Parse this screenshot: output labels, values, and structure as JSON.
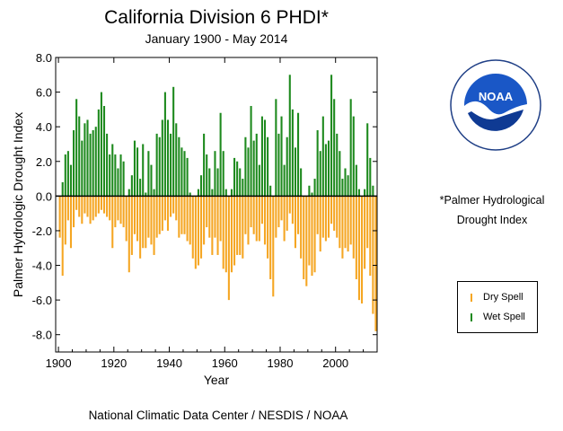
{
  "chart_data": {
    "type": "bar",
    "title": "California Division 6 PHDI*",
    "subtitle": "January 1900 - May 2014",
    "xlabel": "Year",
    "ylabel": "Palmer Hydrologic Drought Index",
    "xlim": [
      1899,
      2015
    ],
    "ylim": [
      -9.0,
      8.0
    ],
    "yticks": [
      "8.0",
      "6.0",
      "4.0",
      "2.0",
      "0.0",
      "-2.0",
      "-4.0",
      "-6.0",
      "-8.0"
    ],
    "ytick_values": [
      8,
      6,
      4,
      2,
      0,
      -2,
      -4,
      -6,
      -8
    ],
    "xticks": [
      "1900",
      "1920",
      "1940",
      "1960",
      "1980",
      "2000"
    ],
    "xtick_values": [
      1900,
      1920,
      1940,
      1960,
      1980,
      2000
    ],
    "grid": false,
    "series": [
      {
        "name": "Dry Spell",
        "color": "#f5a623"
      },
      {
        "name": "Wet Spell",
        "color": "#1e8a1e"
      }
    ],
    "x": [
      1900,
      1901,
      1902,
      1903,
      1904,
      1905,
      1906,
      1907,
      1908,
      1909,
      1910,
      1911,
      1912,
      1913,
      1914,
      1915,
      1916,
      1917,
      1918,
      1919,
      1920,
      1921,
      1922,
      1923,
      1924,
      1925,
      1926,
      1927,
      1928,
      1929,
      1930,
      1931,
      1932,
      1933,
      1934,
      1935,
      1936,
      1937,
      1938,
      1939,
      1940,
      1941,
      1942,
      1943,
      1944,
      1945,
      1946,
      1947,
      1948,
      1949,
      1950,
      1951,
      1952,
      1953,
      1954,
      1955,
      1956,
      1957,
      1958,
      1959,
      1960,
      1961,
      1962,
      1963,
      1964,
      1965,
      1966,
      1967,
      1968,
      1969,
      1970,
      1971,
      1972,
      1973,
      1974,
      1975,
      1976,
      1977,
      1978,
      1979,
      1980,
      1981,
      1982,
      1983,
      1984,
      1985,
      1986,
      1987,
      1988,
      1989,
      1990,
      1991,
      1992,
      1993,
      1994,
      1995,
      1996,
      1997,
      1998,
      1999,
      2000,
      2001,
      2002,
      2003,
      2004,
      2005,
      2006,
      2007,
      2008,
      2009,
      2010,
      2011,
      2012,
      2013,
      2014
    ],
    "y_max": [
      0,
      0.8,
      2.4,
      2.6,
      1.8,
      3.8,
      5.6,
      4.6,
      3.2,
      4.2,
      4.4,
      3.6,
      3.8,
      4.0,
      5.0,
      6.0,
      5.2,
      3.6,
      2.4,
      3.0,
      2.4,
      1.6,
      2.4,
      2.0,
      0,
      0.4,
      1.2,
      3.2,
      2.8,
      1.0,
      3.0,
      0.2,
      2.6,
      1.8,
      0.4,
      3.6,
      3.4,
      4.4,
      6.0,
      4.4,
      3.6,
      6.3,
      4.2,
      3.4,
      2.8,
      2.6,
      2.2,
      0.2,
      0,
      0,
      0.4,
      1.2,
      3.6,
      2.4,
      1.6,
      0.4,
      2.6,
      1.6,
      4.8,
      2.6,
      0.4,
      0,
      0.4,
      2.2,
      2.0,
      1.6,
      1.0,
      3.4,
      2.8,
      5.2,
      3.2,
      3.6,
      1.8,
      4.6,
      4.4,
      3.4,
      0.6,
      0,
      5.6,
      3.6,
      4.6,
      1.8,
      3.4,
      7.0,
      5.0,
      2.8,
      4.8,
      1.6,
      0,
      0,
      0.6,
      0.2,
      1.0,
      3.8,
      2.6,
      4.6,
      3.0,
      3.2,
      7.0,
      5.6,
      3.6,
      2.6,
      1.0,
      1.6,
      1.2,
      5.6,
      4.6,
      1.8,
      0.4,
      0,
      0.4,
      4.2,
      2.2,
      0.6,
      0
    ],
    "y_min": [
      -2.4,
      -4.6,
      -2.8,
      -1.4,
      -3.0,
      -1.8,
      -0.8,
      -1.2,
      -1.6,
      -1.0,
      -1.2,
      -1.6,
      -1.4,
      -1.2,
      -1.0,
      -0.8,
      -1.0,
      -1.2,
      -1.4,
      -3.0,
      -1.8,
      -1.4,
      -1.6,
      -1.8,
      -2.6,
      -4.4,
      -3.4,
      -2.2,
      -2.6,
      -3.6,
      -3.0,
      -3.0,
      -2.4,
      -2.8,
      -3.4,
      -2.4,
      -2.2,
      -2.0,
      -1.4,
      -2.0,
      -1.2,
      -1.0,
      -1.4,
      -2.4,
      -2.2,
      -2.2,
      -2.6,
      -2.8,
      -3.6,
      -4.2,
      -4.0,
      -3.6,
      -2.8,
      -1.8,
      -2.4,
      -3.4,
      -2.4,
      -3.4,
      -2.6,
      -4.2,
      -4.4,
      -6.0,
      -4.4,
      -4.0,
      -3.4,
      -3.4,
      -3.6,
      -2.2,
      -2.8,
      -1.8,
      -2.2,
      -2.6,
      -2.6,
      -1.6,
      -2.8,
      -3.6,
      -4.8,
      -5.8,
      -2.4,
      -1.8,
      -1.4,
      -2.6,
      -2.0,
      -1.0,
      -1.6,
      -3.0,
      -2.2,
      -3.6,
      -4.8,
      -5.2,
      -4.0,
      -4.6,
      -4.4,
      -2.2,
      -3.2,
      -2.4,
      -2.6,
      -2.4,
      -1.6,
      -2.0,
      -2.4,
      -3.0,
      -3.6,
      -3.0,
      -3.2,
      -2.8,
      -3.6,
      -4.8,
      -6.0,
      -6.2,
      -4.2,
      -3.0,
      -4.6,
      -6.8,
      -7.8
    ]
  },
  "logo": {
    "text": "NOAA"
  },
  "footnote": {
    "line1": "*Palmer Hydrological",
    "line2": "Drought Index"
  },
  "legend": {
    "dry": "Dry Spell",
    "wet": "Wet Spell",
    "dry_color": "#f5a623",
    "wet_color": "#1e8a1e"
  },
  "credit": "National Climatic Data Center / NESDIS / NOAA"
}
